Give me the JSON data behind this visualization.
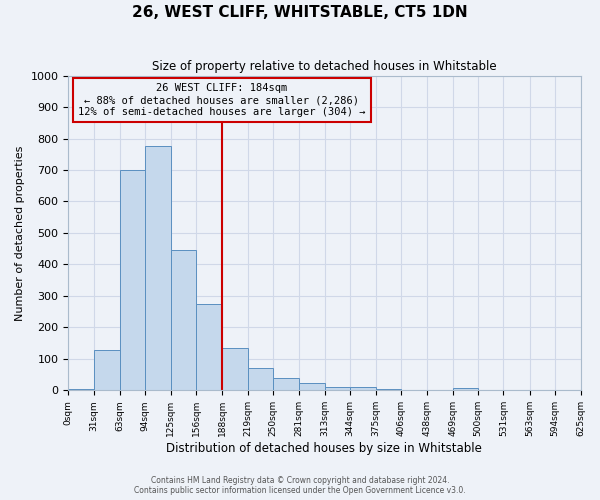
{
  "title": "26, WEST CLIFF, WHITSTABLE, CT5 1DN",
  "subtitle": "Size of property relative to detached houses in Whitstable",
  "xlabel": "Distribution of detached houses by size in Whitstable",
  "ylabel": "Number of detached properties",
  "bar_values": [
    5,
    127,
    700,
    775,
    445,
    275,
    133,
    70,
    38,
    22,
    10,
    10,
    5,
    0,
    0,
    8,
    0,
    0,
    0,
    0
  ],
  "bin_edges": [
    0,
    31,
    63,
    94,
    125,
    156,
    188,
    219,
    250,
    281,
    313,
    344,
    375,
    406,
    438,
    469,
    500,
    531,
    563,
    594,
    625
  ],
  "tick_labels": [
    "0sqm",
    "31sqm",
    "63sqm",
    "94sqm",
    "125sqm",
    "156sqm",
    "188sqm",
    "219sqm",
    "250sqm",
    "281sqm",
    "313sqm",
    "344sqm",
    "375sqm",
    "406sqm",
    "438sqm",
    "469sqm",
    "500sqm",
    "531sqm",
    "563sqm",
    "594sqm",
    "625sqm"
  ],
  "bar_facecolor": "#c5d8ec",
  "bar_edgecolor": "#5a8fc0",
  "vline_x": 188,
  "vline_color": "#cc0000",
  "ylim": [
    0,
    1000
  ],
  "yticks": [
    0,
    100,
    200,
    300,
    400,
    500,
    600,
    700,
    800,
    900,
    1000
  ],
  "annotation_line1": "26 WEST CLIFF: 184sqm",
  "annotation_line2": "← 88% of detached houses are smaller (2,286)",
  "annotation_line3": "12% of semi-detached houses are larger (304) →",
  "annotation_box_edgecolor": "#cc0000",
  "grid_color": "#d0d8e8",
  "background_color": "#eef2f8",
  "footer_line1": "Contains HM Land Registry data © Crown copyright and database right 2024.",
  "footer_line2": "Contains public sector information licensed under the Open Government Licence v3.0."
}
